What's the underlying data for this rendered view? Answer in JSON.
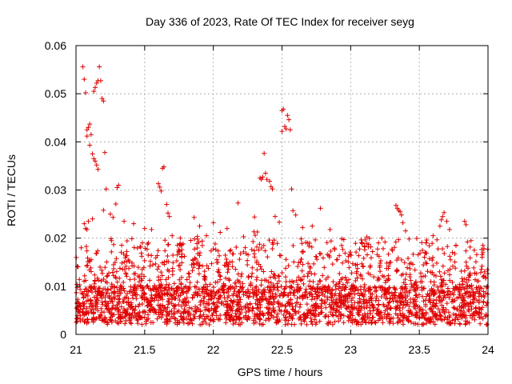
{
  "chart_data": {
    "type": "scatter",
    "title": "Day 336 of 2023, Rate Of TEC Index for receiver seyg",
    "xlabel": "GPS time / hours",
    "ylabel": "ROTI / TECUs",
    "xlim": [
      21,
      24
    ],
    "ylim": [
      0,
      0.06
    ],
    "x_ticks": [
      21,
      21.5,
      22,
      22.5,
      23,
      23.5,
      24
    ],
    "x_tick_labels": [
      "21",
      "21.5",
      "22",
      "22.5",
      "23",
      "23.5",
      "24"
    ],
    "y_ticks": [
      0,
      0.01,
      0.02,
      0.03,
      0.04,
      0.05,
      0.06
    ],
    "y_tick_labels": [
      "0",
      "0.01",
      "0.02",
      "0.03",
      "0.04",
      "0.05",
      "0.06"
    ],
    "grid": true,
    "marker": "+",
    "marker_color": "#e00000",
    "series": [
      {
        "name": "ROTI",
        "points": [
          [
            21.05,
            0.0556
          ],
          [
            21.06,
            0.053
          ],
          [
            21.07,
            0.0502
          ],
          [
            21.08,
            0.0425
          ],
          [
            21.09,
            0.043
          ],
          [
            21.1,
            0.0437
          ],
          [
            21.11,
            0.0415
          ],
          [
            21.12,
            0.0375
          ],
          [
            21.13,
            0.0505
          ],
          [
            21.14,
            0.0513
          ],
          [
            21.15,
            0.0522
          ],
          [
            21.16,
            0.0527
          ],
          [
            21.17,
            0.0556
          ],
          [
            21.18,
            0.0527
          ],
          [
            21.19,
            0.049
          ],
          [
            21.2,
            0.0485
          ],
          [
            21.21,
            0.0378
          ],
          [
            21.14,
            0.036
          ],
          [
            21.15,
            0.0352
          ],
          [
            21.16,
            0.0343
          ],
          [
            21.13,
            0.0365
          ],
          [
            21.1,
            0.0393
          ],
          [
            21.08,
            0.0412
          ],
          [
            21.22,
            0.0302
          ],
          [
            21.3,
            0.0305
          ],
          [
            21.31,
            0.031
          ],
          [
            21.06,
            0.023
          ],
          [
            21.07,
            0.022
          ],
          [
            21.08,
            0.0218
          ],
          [
            21.09,
            0.0235
          ],
          [
            21.12,
            0.024
          ],
          [
            21.2,
            0.0258
          ],
          [
            21.25,
            0.025
          ],
          [
            21.27,
            0.0243
          ],
          [
            21.29,
            0.0271
          ],
          [
            21.35,
            0.0235
          ],
          [
            21.42,
            0.023
          ],
          [
            21.5,
            0.022
          ],
          [
            21.55,
            0.0218
          ],
          [
            21.6,
            0.0313
          ],
          [
            21.61,
            0.0306
          ],
          [
            21.62,
            0.0298
          ],
          [
            21.63,
            0.0345
          ],
          [
            21.64,
            0.0348
          ],
          [
            21.66,
            0.027
          ],
          [
            21.67,
            0.0252
          ],
          [
            21.68,
            0.0245
          ],
          [
            21.7,
            0.0205
          ],
          [
            21.78,
            0.0188
          ],
          [
            21.86,
            0.0243
          ],
          [
            21.9,
            0.0225
          ],
          [
            21.95,
            0.0205
          ],
          [
            22.0,
            0.0232
          ],
          [
            22.05,
            0.0212
          ],
          [
            22.1,
            0.022
          ],
          [
            22.18,
            0.0273
          ],
          [
            22.22,
            0.0203
          ],
          [
            22.3,
            0.0244
          ],
          [
            22.34,
            0.0325
          ],
          [
            22.35,
            0.0322
          ],
          [
            22.36,
            0.0327
          ],
          [
            22.37,
            0.0376
          ],
          [
            22.38,
            0.0335
          ],
          [
            22.39,
            0.0322
          ],
          [
            22.41,
            0.0318
          ],
          [
            22.42,
            0.0307
          ],
          [
            22.43,
            0.0302
          ],
          [
            22.45,
            0.0245
          ],
          [
            22.48,
            0.0233
          ],
          [
            22.5,
            0.0422
          ],
          [
            22.5,
            0.0465
          ],
          [
            22.51,
            0.0468
          ],
          [
            22.52,
            0.0432
          ],
          [
            22.53,
            0.0427
          ],
          [
            22.54,
            0.0455
          ],
          [
            22.55,
            0.0446
          ],
          [
            22.56,
            0.0425
          ],
          [
            22.57,
            0.0302
          ],
          [
            22.58,
            0.0257
          ],
          [
            22.6,
            0.0248
          ],
          [
            22.65,
            0.0222
          ],
          [
            22.72,
            0.0225
          ],
          [
            22.78,
            0.0262
          ],
          [
            22.85,
            0.0218
          ],
          [
            22.95,
            0.0197
          ],
          [
            23.1,
            0.0182
          ],
          [
            23.25,
            0.0192
          ],
          [
            23.33,
            0.0268
          ],
          [
            23.34,
            0.0262
          ],
          [
            23.35,
            0.0258
          ],
          [
            23.36,
            0.0255
          ],
          [
            23.37,
            0.0248
          ],
          [
            23.38,
            0.0232
          ],
          [
            23.4,
            0.0215
          ],
          [
            23.55,
            0.019
          ],
          [
            23.6,
            0.0205
          ],
          [
            23.65,
            0.0225
          ],
          [
            23.66,
            0.0238
          ],
          [
            23.67,
            0.0245
          ],
          [
            23.68,
            0.0253
          ],
          [
            23.7,
            0.0235
          ],
          [
            23.72,
            0.0218
          ],
          [
            23.83,
            0.0235
          ],
          [
            23.84,
            0.0228
          ],
          [
            23.9,
            0.0175
          ]
        ],
        "band_description": "dense background cloud 0.002-0.02 across 21-24 h",
        "band_samples": [
          [
            21.05,
            0.004
          ],
          [
            21.1,
            0.007
          ],
          [
            21.15,
            0.003
          ],
          [
            21.2,
            0.006
          ],
          [
            21.25,
            0.009
          ],
          [
            21.3,
            0.005
          ],
          [
            21.35,
            0.011
          ],
          [
            21.4,
            0.007
          ],
          [
            21.45,
            0.004
          ],
          [
            21.5,
            0.009
          ],
          [
            21.55,
            0.012
          ],
          [
            21.6,
            0.006
          ],
          [
            21.65,
            0.008
          ],
          [
            21.7,
            0.005
          ],
          [
            21.75,
            0.01
          ],
          [
            21.8,
            0.004
          ],
          [
            21.85,
            0.007
          ],
          [
            21.9,
            0.012
          ],
          [
            21.95,
            0.005
          ],
          [
            22.0,
            0.003
          ],
          [
            22.05,
            0.009
          ],
          [
            22.1,
            0.006
          ],
          [
            22.15,
            0.011
          ],
          [
            22.2,
            0.004
          ],
          [
            22.25,
            0.008
          ],
          [
            22.3,
            0.013
          ],
          [
            22.35,
            0.006
          ],
          [
            22.4,
            0.009
          ],
          [
            22.45,
            0.005
          ],
          [
            22.5,
            0.012
          ],
          [
            22.55,
            0.007
          ],
          [
            22.6,
            0.004
          ],
          [
            22.65,
            0.01
          ],
          [
            22.7,
            0.006
          ],
          [
            22.75,
            0.008
          ],
          [
            22.8,
            0.005
          ],
          [
            22.85,
            0.011
          ],
          [
            22.9,
            0.007
          ],
          [
            22.95,
            0.004
          ],
          [
            23.0,
            0.009
          ],
          [
            23.05,
            0.006
          ],
          [
            23.1,
            0.012
          ],
          [
            23.15,
            0.005
          ],
          [
            23.2,
            0.008
          ],
          [
            23.25,
            0.004
          ],
          [
            23.3,
            0.01
          ],
          [
            23.35,
            0.007
          ],
          [
            23.4,
            0.005
          ],
          [
            23.45,
            0.009
          ],
          [
            23.5,
            0.006
          ],
          [
            23.55,
            0.011
          ],
          [
            23.6,
            0.004
          ],
          [
            23.65,
            0.008
          ],
          [
            23.7,
            0.006
          ],
          [
            23.75,
            0.01
          ],
          [
            23.8,
            0.005
          ],
          [
            23.85,
            0.007
          ],
          [
            23.9,
            0.004
          ],
          [
            23.95,
            0.009
          ],
          [
            23.99,
            0.006
          ]
        ]
      }
    ]
  }
}
